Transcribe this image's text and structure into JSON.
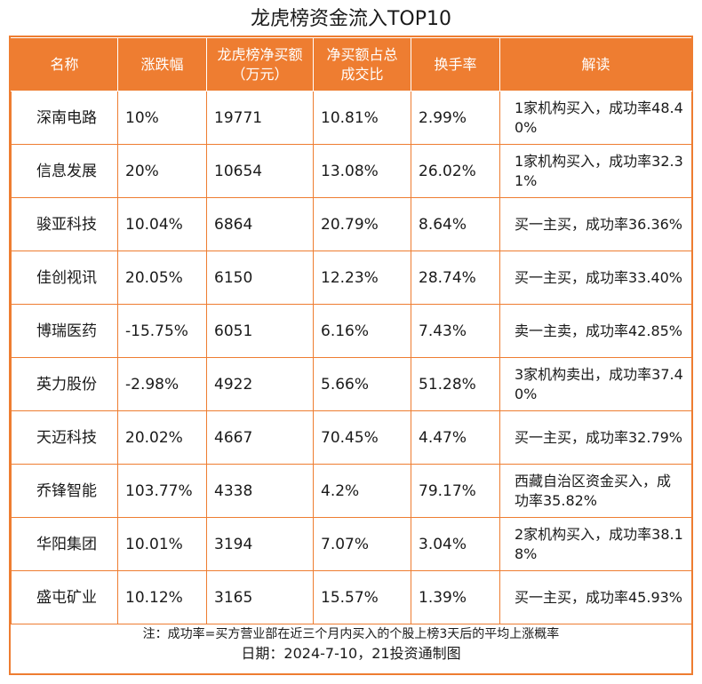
{
  "title": "龙虎榜资金流入TOP10",
  "headers": [
    "名称",
    "涨跌幅",
    "龙虎榜净买额（万元）",
    "净买额占总成交比",
    "换手率",
    "解读"
  ],
  "rows": [
    {
      "name": "深南电路",
      "change": "10%",
      "net_buy": "19771",
      "ratio": "10.81%",
      "turnover": "2.99%",
      "note": "1家机构买入，成功率48.40%"
    },
    {
      "name": "信息发展",
      "change": "20%",
      "net_buy": "10654",
      "ratio": "13.08%",
      "turnover": "26.02%",
      "note": "1家机构买入，成功率32.31%"
    },
    {
      "name": "骏亚科技",
      "change": "10.04%",
      "net_buy": "6864",
      "ratio": "20.79%",
      "turnover": "8.64%",
      "note": "买一主买，成功率36.36%"
    },
    {
      "name": "佳创视讯",
      "change": "20.05%",
      "net_buy": "6150",
      "ratio": "12.23%",
      "turnover": "28.74%",
      "note": "买一主买，成功率33.40%"
    },
    {
      "name": "博瑞医药",
      "change": "-15.75%",
      "net_buy": "6051",
      "ratio": "6.16%",
      "turnover": "7.43%",
      "note": "卖一主卖，成功率42.85%"
    },
    {
      "name": "英力股份",
      "change": "-2.98%",
      "net_buy": "4922",
      "ratio": "5.66%",
      "turnover": "51.28%",
      "note": "3家机构卖出，成功率37.40%"
    },
    {
      "name": "天迈科技",
      "change": "20.02%",
      "net_buy": "4667",
      "ratio": "70.45%",
      "turnover": "4.47%",
      "note": "买一主买，成功率32.79%"
    },
    {
      "name": "乔锋智能",
      "change": "103.77%",
      "net_buy": "4338",
      "ratio": "4.2%",
      "turnover": "79.17%",
      "note": "西藏自治区资金买入，成功率35.82%"
    },
    {
      "name": "华阳集团",
      "change": "10.01%",
      "net_buy": "3194",
      "ratio": "7.07%",
      "turnover": "3.04%",
      "note": "2家机构买入，成功率38.18%"
    },
    {
      "name": "盛屯矿业",
      "change": "10.12%",
      "net_buy": "3165",
      "ratio": "15.57%",
      "turnover": "1.39%",
      "note": "买一主买，成功率45.93%"
    }
  ],
  "footer": {
    "note": "注：成功率=买方营业部在近三个月内买入的个股上榜3天后的平均上涨概率",
    "date": "日期：2024-7-10，21投资通制图"
  }
}
